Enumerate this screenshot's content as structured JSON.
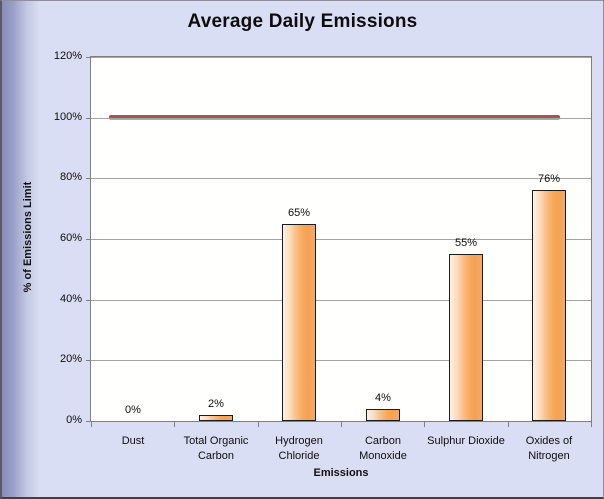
{
  "title_bar": {
    "title": "Average Daily Emissions"
  },
  "chart_data": {
    "type": "bar",
    "title": "Average Daily Emissions",
    "categories": [
      "Dust",
      "Total Organic Carbon",
      "Hydrogen Chloride",
      "Carbon Monoxide",
      "Sulphur Dioxide",
      "Oxides of Nitrogen"
    ],
    "values": [
      0,
      2,
      65,
      4,
      55,
      76
    ],
    "data_labels": [
      "0%",
      "2%",
      "65%",
      "4%",
      "55%",
      "76%"
    ],
    "xlabel": "Emissions",
    "ylabel": "% of Emissions  Limit",
    "ylim": [
      0,
      120
    ],
    "ytick_interval": 20,
    "ytick_labels": [
      "0%",
      "20%",
      "40%",
      "60%",
      "80%",
      "100%",
      "120%"
    ],
    "grid": true,
    "legend": "none",
    "limit_line": {
      "value": 100,
      "color": "#b4504b"
    }
  },
  "colors": {
    "background": "#d9def4",
    "plot_background": "#fffffe",
    "gridline": "#a3a3a3",
    "axis": "#7f7f7f",
    "bar_fill_light": "#fdf1e8",
    "bar_fill_dark": "#f6a152",
    "bar_border": "#1c1c1c",
    "limit_line": "#b4504b",
    "text": "#0d0d0d"
  }
}
